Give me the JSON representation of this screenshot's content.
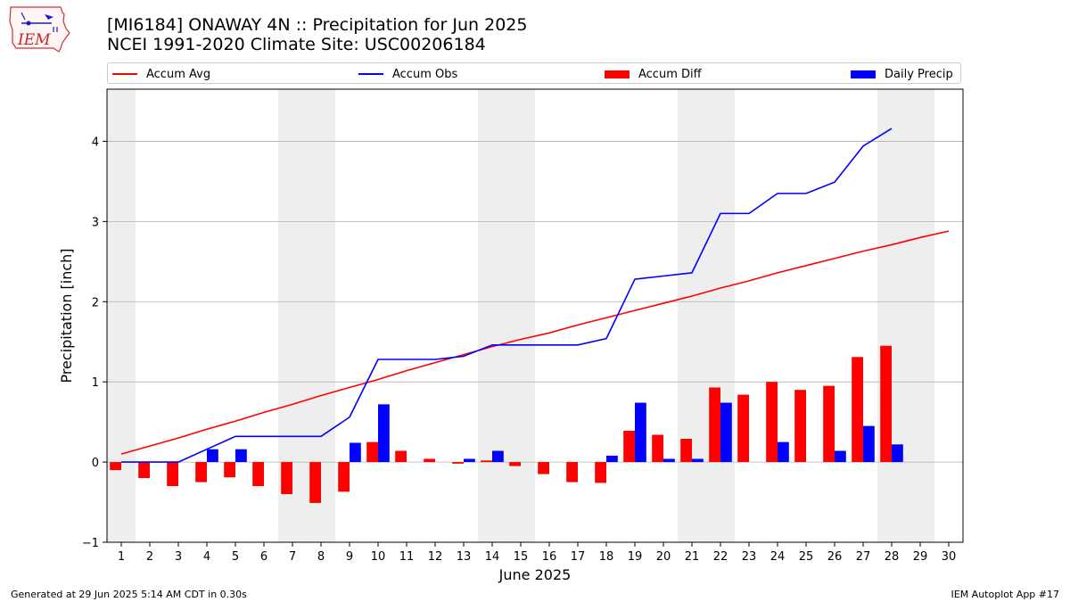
{
  "header": {
    "title_line1": "[MI6184] ONAWAY 4N :: Precipitation for Jun 2025",
    "title_line2": "NCEI 1991-2020 Climate Site: USC00206184",
    "logo_text": "IEM"
  },
  "legend": {
    "placement": "top",
    "items": [
      {
        "label": "Accum Avg",
        "kind": "line",
        "color": "#ff0000"
      },
      {
        "label": "Accum Obs",
        "kind": "line",
        "color": "#0000ff"
      },
      {
        "label": "Accum Diff",
        "kind": "bar",
        "color": "#ff0000"
      },
      {
        "label": "Daily Precip",
        "kind": "bar",
        "color": "#0000ff"
      }
    ]
  },
  "footer": {
    "left": "Generated at 29 Jun 2025 5:14 AM CDT in 0.30s",
    "right": "IEM Autoplot App #17"
  },
  "chart_data": {
    "type": "bar",
    "xlabel": "June 2025",
    "ylabel": "Precipitation [inch]",
    "ylim": [
      -1,
      4.65
    ],
    "xlim": [
      0.5,
      30.5
    ],
    "yticks": [
      -1,
      0,
      1,
      2,
      3,
      4
    ],
    "ytick_labels": [
      "−1",
      "0",
      "1",
      "2",
      "3",
      "4"
    ],
    "grid": "horizontal",
    "weekend_shading": [
      [
        0.5,
        1.5
      ],
      [
        6.5,
        8.5
      ],
      [
        13.5,
        15.5
      ],
      [
        20.5,
        22.5
      ],
      [
        27.5,
        29.5
      ]
    ],
    "colors": {
      "avg": "#ff0000",
      "obs": "#0000ff",
      "shade": "#eeeeee",
      "grid": "#b0b0b0"
    },
    "days": [
      1,
      2,
      3,
      4,
      5,
      6,
      7,
      8,
      9,
      10,
      11,
      12,
      13,
      14,
      15,
      16,
      17,
      18,
      19,
      20,
      21,
      22,
      23,
      24,
      25,
      26,
      27,
      28,
      29,
      30
    ],
    "series": [
      {
        "name": "Accum Avg",
        "kind": "line",
        "values": [
          0.1,
          0.2,
          0.3,
          0.41,
          0.51,
          0.62,
          0.72,
          0.83,
          0.93,
          1.03,
          1.14,
          1.24,
          1.34,
          1.44,
          1.53,
          1.61,
          1.71,
          1.8,
          1.89,
          1.98,
          2.07,
          2.17,
          2.26,
          2.36,
          2.45,
          2.54,
          2.63,
          2.71,
          2.8,
          2.88
        ]
      },
      {
        "name": "Accum Obs",
        "kind": "line",
        "values": [
          0.0,
          0.0,
          0.0,
          0.16,
          0.32,
          0.32,
          0.32,
          0.32,
          0.56,
          1.28,
          1.28,
          1.28,
          1.32,
          1.46,
          1.46,
          1.46,
          1.46,
          1.54,
          2.28,
          2.32,
          2.36,
          3.1,
          3.1,
          3.35,
          3.35,
          3.49,
          3.94,
          4.16,
          null,
          null
        ]
      },
      {
        "name": "Accum Diff",
        "kind": "bar",
        "values": [
          -0.1,
          -0.2,
          -0.3,
          -0.25,
          -0.19,
          -0.3,
          -0.4,
          -0.51,
          -0.37,
          0.25,
          0.14,
          0.04,
          -0.02,
          0.02,
          -0.05,
          -0.15,
          -0.25,
          -0.26,
          0.39,
          0.34,
          0.29,
          0.93,
          0.84,
          1.0,
          0.9,
          0.95,
          1.31,
          1.45,
          null,
          null
        ]
      },
      {
        "name": "Daily Precip",
        "kind": "bar",
        "values": [
          0.0,
          0.0,
          0.0,
          0.16,
          0.16,
          0.0,
          0.0,
          0.0,
          0.24,
          0.72,
          0.0,
          0.0,
          0.04,
          0.14,
          0.0,
          0.0,
          0.0,
          0.08,
          0.74,
          0.04,
          0.04,
          0.74,
          0.0,
          0.25,
          0.0,
          0.14,
          0.45,
          0.22,
          null,
          null
        ]
      }
    ]
  }
}
